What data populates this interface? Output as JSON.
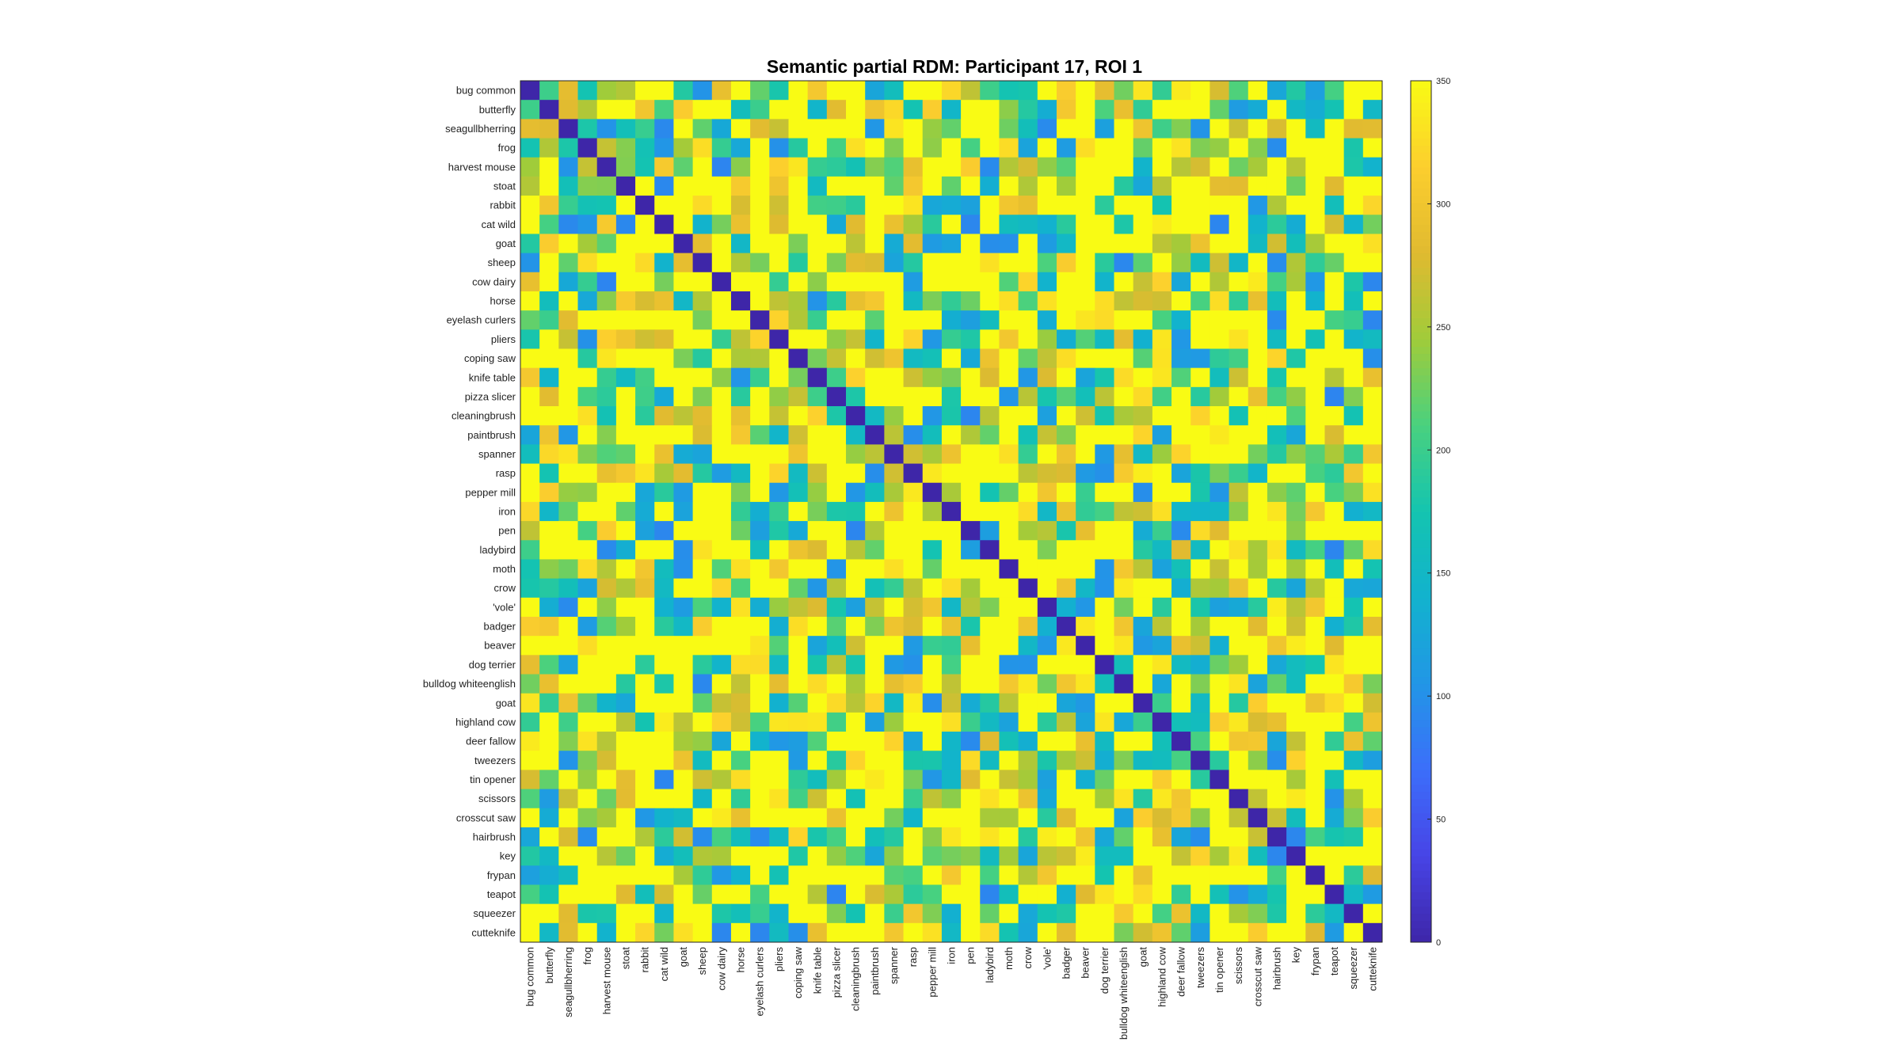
{
  "chart_data": {
    "type": "heatmap",
    "title": "Semantic partial RDM: Participant 17, ROI 1",
    "labels": [
      "bug common",
      "butterfly",
      "seagullbherring",
      "frog",
      "harvest mouse",
      "stoat",
      "rabbit",
      "cat wild",
      "goat",
      "sheep",
      "cow dairy",
      "horse",
      "eyelash curlers",
      "pliers",
      "coping saw",
      "knife table",
      "pizza slicer",
      "cleaningbrush",
      "paintbrush",
      "spanner",
      "rasp",
      "pepper mill",
      "iron",
      "pen",
      "ladybird",
      "moth",
      "crow",
      "'vole'",
      "badger",
      "beaver",
      "dog terrier",
      "bulldog whiteenglish",
      "goat",
      "highland cow",
      "deer fallow",
      "tweezers",
      "tin opener",
      "scissors",
      "crosscut saw",
      "hairbrush",
      "key",
      "frypan",
      "teapot",
      "squeezer",
      "cutteknife"
    ],
    "colorbar": {
      "min": 0,
      "max": 350,
      "ticks": [
        "0",
        "50",
        "100",
        "150",
        "200",
        "250",
        "300",
        "350"
      ],
      "colormap": "parula"
    },
    "diagonal_value": 0,
    "value_range": [
      0,
      350
    ]
  }
}
